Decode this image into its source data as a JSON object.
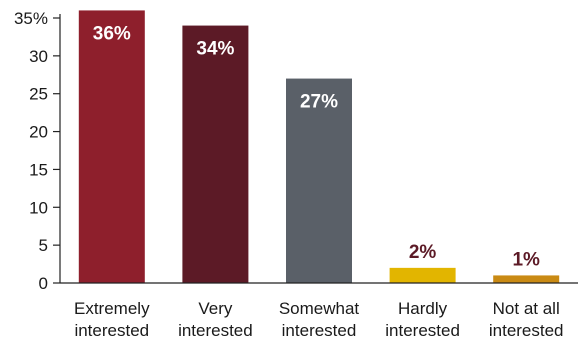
{
  "chart_data": {
    "type": "bar",
    "categories": [
      [
        "Extremely",
        "interested"
      ],
      [
        "Very",
        "interested"
      ],
      [
        "Somewhat",
        "interested"
      ],
      [
        "Hardly",
        "interested"
      ],
      [
        "Not at all",
        "interested"
      ]
    ],
    "values": [
      36,
      34,
      27,
      2,
      1
    ],
    "data_labels": [
      "36%",
      "34%",
      "27%",
      "2%",
      "1%"
    ],
    "bar_colors": [
      "#8e1f2c",
      "#5c1a26",
      "#5a6068",
      "#e2b500",
      "#c98a14"
    ],
    "label_colors": [
      "#ffffff",
      "#ffffff",
      "#ffffff",
      "#5c1a26",
      "#5c1a26"
    ],
    "label_inside": [
      true,
      true,
      true,
      false,
      false
    ],
    "ylim": [
      0,
      35
    ],
    "yticks": [
      0,
      5,
      10,
      15,
      20,
      25,
      30,
      35
    ],
    "ytick_labels": [
      "0",
      "5",
      "10",
      "15",
      "20",
      "25",
      "30",
      "35%"
    ],
    "grid": false,
    "legend": "none",
    "title": "",
    "xlabel": "",
    "ylabel": ""
  }
}
